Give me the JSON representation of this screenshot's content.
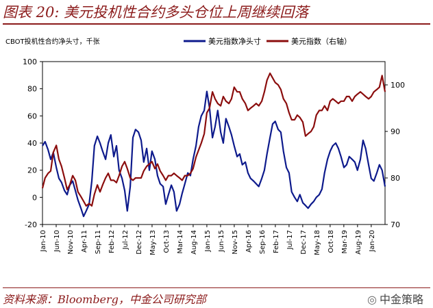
{
  "title": "图表 20: 美元投机性合约多头仓位上周继续回落",
  "source": "资料来源：Bloomberg，中金公司研究部",
  "watermark": "中金策略",
  "chart_data": {
    "type": "line",
    "title": "美元投机性合约多头仓位上周继续回落",
    "left_axis_label": "CBOT投机性合约净头寸，千张",
    "left_ylim": [
      -20,
      100
    ],
    "left_yticks": [
      -20,
      0,
      20,
      40,
      60,
      80,
      100
    ],
    "right_ylim": [
      70,
      105
    ],
    "right_yticks": [
      70,
      80,
      90,
      100
    ],
    "x_tick_labels": [
      "Jan-10",
      "Jun-10",
      "Nov-10",
      "Apr-11",
      "Sep-11",
      "Feb-12",
      "Jul-12",
      "Dec-12",
      "May-13",
      "Oct-13",
      "Mar-14",
      "Aug-14",
      "Jan-15",
      "Jun-15",
      "Nov-15",
      "Apr-16",
      "Sep-16",
      "Feb-17",
      "Jul-17",
      "Dec-17",
      "May-18",
      "Oct-18",
      "Mar-19",
      "Aug-19",
      "Jan-20"
    ],
    "x_range": [
      2010.0,
      2020.42
    ],
    "series": [
      {
        "name": "美元指数净头寸",
        "axis": "left",
        "color": "#0d1a8c",
        "x": [
          2010.0,
          2010.08,
          2010.17,
          2010.25,
          2010.33,
          2010.42,
          2010.5,
          2010.58,
          2010.67,
          2010.75,
          2010.83,
          2010.92,
          2011.0,
          2011.08,
          2011.17,
          2011.25,
          2011.33,
          2011.42,
          2011.5,
          2011.58,
          2011.67,
          2011.75,
          2011.83,
          2011.92,
          2012.0,
          2012.08,
          2012.17,
          2012.25,
          2012.33,
          2012.42,
          2012.5,
          2012.58,
          2012.67,
          2012.75,
          2012.83,
          2012.92,
          2013.0,
          2013.08,
          2013.17,
          2013.25,
          2013.33,
          2013.42,
          2013.5,
          2013.58,
          2013.67,
          2013.75,
          2013.83,
          2013.92,
          2014.0,
          2014.08,
          2014.17,
          2014.25,
          2014.33,
          2014.42,
          2014.5,
          2014.58,
          2014.67,
          2014.75,
          2014.83,
          2014.92,
          2015.0,
          2015.08,
          2015.17,
          2015.25,
          2015.33,
          2015.42,
          2015.5,
          2015.58,
          2015.67,
          2015.75,
          2015.83,
          2015.92,
          2016.0,
          2016.08,
          2016.17,
          2016.25,
          2016.33,
          2016.42,
          2016.5,
          2016.58,
          2016.67,
          2016.75,
          2016.83,
          2016.92,
          2017.0,
          2017.08,
          2017.17,
          2017.25,
          2017.33,
          2017.42,
          2017.5,
          2017.58,
          2017.67,
          2017.75,
          2017.83,
          2017.92,
          2018.0,
          2018.08,
          2018.17,
          2018.25,
          2018.33,
          2018.42,
          2018.5,
          2018.58,
          2018.67,
          2018.75,
          2018.83,
          2018.92,
          2019.0,
          2019.08,
          2019.17,
          2019.25,
          2019.33,
          2019.42,
          2019.5,
          2019.58,
          2019.67,
          2019.75,
          2019.83,
          2019.92,
          2020.0,
          2020.08,
          2020.17,
          2020.25,
          2020.33,
          2020.42
        ],
        "values": [
          38,
          41,
          35,
          28,
          33,
          22,
          14,
          11,
          5,
          2,
          9,
          12,
          5,
          -2,
          -8,
          -14,
          -10,
          -5,
          12,
          38,
          45,
          40,
          34,
          28,
          40,
          46,
          30,
          38,
          20,
          14,
          5,
          -10,
          8,
          44,
          50,
          48,
          42,
          26,
          36,
          20,
          34,
          28,
          16,
          10,
          8,
          -5,
          2,
          9,
          4,
          -10,
          -5,
          3,
          10,
          18,
          16,
          28,
          38,
          52,
          60,
          64,
          78,
          66,
          44,
          52,
          64,
          48,
          40,
          58,
          52,
          46,
          38,
          30,
          32,
          24,
          26,
          18,
          14,
          12,
          10,
          8,
          14,
          20,
          32,
          44,
          54,
          56,
          50,
          48,
          34,
          22,
          18,
          4,
          0,
          -3,
          2,
          -4,
          -6,
          -8,
          -5,
          -3,
          0,
          2,
          6,
          18,
          28,
          34,
          38,
          40,
          36,
          30,
          22,
          24,
          30,
          28,
          26,
          20,
          28,
          42,
          36,
          24,
          14,
          12,
          18,
          24,
          20,
          8
        ],
        "labels_note": "Left axis values, thousand contracts (estimated)"
      },
      {
        "name": "美元指数（右轴）",
        "axis": "right",
        "color": "#8b0d0d",
        "x": [
          2010.0,
          2010.08,
          2010.17,
          2010.25,
          2010.33,
          2010.42,
          2010.5,
          2010.58,
          2010.67,
          2010.75,
          2010.83,
          2010.92,
          2011.0,
          2011.08,
          2011.17,
          2011.25,
          2011.33,
          2011.42,
          2011.5,
          2011.58,
          2011.67,
          2011.75,
          2011.83,
          2011.92,
          2012.0,
          2012.08,
          2012.17,
          2012.25,
          2012.33,
          2012.42,
          2012.5,
          2012.58,
          2012.67,
          2012.75,
          2012.83,
          2012.92,
          2013.0,
          2013.08,
          2013.17,
          2013.25,
          2013.33,
          2013.42,
          2013.5,
          2013.58,
          2013.67,
          2013.75,
          2013.83,
          2013.92,
          2014.0,
          2014.08,
          2014.17,
          2014.25,
          2014.33,
          2014.42,
          2014.5,
          2014.58,
          2014.67,
          2014.75,
          2014.83,
          2014.92,
          2015.0,
          2015.08,
          2015.17,
          2015.25,
          2015.33,
          2015.42,
          2015.5,
          2015.58,
          2015.67,
          2015.75,
          2015.83,
          2015.92,
          2016.0,
          2016.08,
          2016.17,
          2016.25,
          2016.33,
          2016.42,
          2016.5,
          2016.58,
          2016.67,
          2016.75,
          2016.83,
          2016.92,
          2017.0,
          2017.08,
          2017.17,
          2017.25,
          2017.33,
          2017.42,
          2017.5,
          2017.58,
          2017.67,
          2017.75,
          2017.83,
          2017.92,
          2018.0,
          2018.08,
          2018.17,
          2018.25,
          2018.33,
          2018.42,
          2018.5,
          2018.58,
          2018.67,
          2018.75,
          2018.83,
          2018.92,
          2019.0,
          2019.08,
          2019.17,
          2019.25,
          2019.33,
          2019.42,
          2019.5,
          2019.58,
          2019.67,
          2019.75,
          2019.83,
          2019.92,
          2020.0,
          2020.08,
          2020.17,
          2020.25,
          2020.33,
          2020.42
        ],
        "values": [
          77.8,
          80.0,
          81.0,
          81.5,
          85.5,
          87.0,
          84.0,
          82.5,
          80.0,
          77.5,
          78.5,
          80.5,
          79.5,
          77.0,
          76.0,
          75.0,
          74.0,
          74.5,
          74.0,
          76.5,
          78.5,
          77.0,
          78.5,
          80.0,
          81.0,
          79.5,
          79.5,
          79.0,
          80.5,
          82.5,
          83.5,
          82.0,
          80.0,
          79.5,
          80.0,
          80.0,
          80.0,
          81.5,
          82.5,
          83.0,
          83.5,
          82.0,
          83.0,
          81.5,
          80.5,
          79.5,
          80.5,
          80.5,
          81.0,
          80.5,
          80.0,
          79.5,
          80.5,
          80.5,
          81.0,
          82.0,
          84.5,
          86.0,
          87.5,
          89.5,
          94.0,
          95.0,
          98.5,
          97.0,
          96.0,
          95.5,
          97.5,
          96.5,
          96.0,
          97.0,
          99.5,
          98.5,
          98.5,
          97.0,
          96.0,
          94.5,
          95.0,
          95.5,
          96.0,
          95.5,
          96.5,
          98.5,
          101.0,
          102.5,
          101.5,
          100.5,
          100.0,
          99.0,
          97.0,
          96.0,
          94.0,
          92.5,
          92.5,
          93.5,
          93.0,
          92.0,
          89.0,
          89.5,
          90.0,
          91.0,
          93.5,
          94.5,
          94.5,
          95.5,
          94.5,
          96.5,
          97.0,
          96.5,
          96.0,
          96.5,
          96.5,
          97.5,
          97.5,
          96.5,
          97.5,
          98.0,
          98.5,
          98.0,
          97.5,
          97.0,
          97.5,
          98.5,
          99.0,
          99.5,
          102.0,
          98.5
        ]
      }
    ],
    "legend": [
      "美元指数净头寸",
      "美元指数（右轴）"
    ],
    "legend_placement": "top"
  }
}
